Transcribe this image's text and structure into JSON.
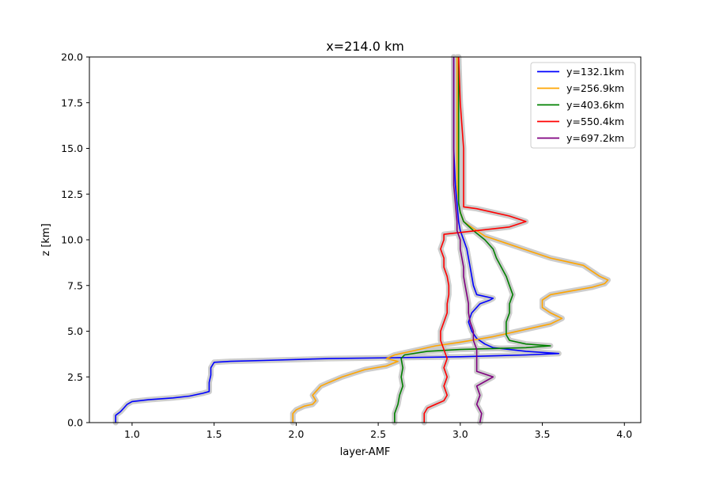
{
  "chart_data": {
    "type": "line",
    "title": "x=214.0 km",
    "xlabel": "layer-AMF",
    "ylabel": "z [km]",
    "xlim": [
      0.74,
      4.1
    ],
    "ylim": [
      0,
      20
    ],
    "xticks": [
      "1.0",
      "1.5",
      "2.0",
      "2.5",
      "3.0",
      "3.5",
      "4.0"
    ],
    "xtick_values": [
      1.0,
      1.5,
      2.0,
      2.5,
      3.0,
      3.5,
      4.0
    ],
    "yticks": [
      "0.0",
      "2.5",
      "5.0",
      "7.5",
      "10.0",
      "12.5",
      "15.0",
      "17.5",
      "20.0"
    ],
    "ytick_values": [
      0,
      2.5,
      5,
      7.5,
      10,
      12.5,
      15,
      17.5,
      20
    ],
    "grid": false,
    "legend_position": "top-right",
    "uncertainty_band_color": "#c8c8c8",
    "series": [
      {
        "name": "y=132.1km",
        "color": "#0000ff",
        "points": [
          [
            0.9,
            0.0
          ],
          [
            0.9,
            0.4
          ],
          [
            0.93,
            0.6
          ],
          [
            0.95,
            0.8
          ],
          [
            0.97,
            1.0
          ],
          [
            1.0,
            1.15
          ],
          [
            1.1,
            1.25
          ],
          [
            1.25,
            1.35
          ],
          [
            1.35,
            1.45
          ],
          [
            1.43,
            1.6
          ],
          [
            1.47,
            1.7
          ],
          [
            1.47,
            2.2
          ],
          [
            1.48,
            2.6
          ],
          [
            1.48,
            3.0
          ],
          [
            1.5,
            3.3
          ],
          [
            1.6,
            3.35
          ],
          [
            1.8,
            3.4
          ],
          [
            2.2,
            3.5
          ],
          [
            2.6,
            3.55
          ],
          [
            3.0,
            3.6
          ],
          [
            3.4,
            3.7
          ],
          [
            3.6,
            3.78
          ],
          [
            3.4,
            3.9
          ],
          [
            3.2,
            4.1
          ],
          [
            3.15,
            4.3
          ],
          [
            3.1,
            4.6
          ],
          [
            3.07,
            5.0
          ],
          [
            3.05,
            5.5
          ],
          [
            3.07,
            6.0
          ],
          [
            3.12,
            6.5
          ],
          [
            3.18,
            6.7
          ],
          [
            3.2,
            6.8
          ],
          [
            3.1,
            7.0
          ],
          [
            3.08,
            7.5
          ],
          [
            3.06,
            8.5
          ],
          [
            3.05,
            9.0
          ],
          [
            3.04,
            9.5
          ],
          [
            3.02,
            10.0
          ],
          [
            3.0,
            10.5
          ],
          [
            2.99,
            11.0
          ],
          [
            2.98,
            12.0
          ],
          [
            2.97,
            13.0
          ],
          [
            2.96,
            15.0
          ],
          [
            2.96,
            17.5
          ],
          [
            2.96,
            20.0
          ]
        ]
      },
      {
        "name": "y=256.9km",
        "color": "#ffa500",
        "points": [
          [
            1.98,
            0.0
          ],
          [
            1.98,
            0.5
          ],
          [
            2.0,
            0.7
          ],
          [
            2.05,
            0.9
          ],
          [
            2.1,
            1.0
          ],
          [
            2.12,
            1.2
          ],
          [
            2.1,
            1.5
          ],
          [
            2.12,
            1.7
          ],
          [
            2.15,
            2.0
          ],
          [
            2.2,
            2.2
          ],
          [
            2.28,
            2.5
          ],
          [
            2.35,
            2.7
          ],
          [
            2.42,
            2.9
          ],
          [
            2.55,
            3.1
          ],
          [
            2.62,
            3.35
          ],
          [
            2.55,
            3.5
          ],
          [
            2.6,
            3.7
          ],
          [
            2.7,
            3.9
          ],
          [
            2.85,
            4.2
          ],
          [
            3.0,
            4.4
          ],
          [
            3.2,
            4.7
          ],
          [
            3.4,
            5.1
          ],
          [
            3.55,
            5.4
          ],
          [
            3.62,
            5.7
          ],
          [
            3.55,
            6.0
          ],
          [
            3.5,
            6.3
          ],
          [
            3.5,
            6.7
          ],
          [
            3.55,
            7.0
          ],
          [
            3.8,
            7.4
          ],
          [
            3.88,
            7.6
          ],
          [
            3.9,
            7.8
          ],
          [
            3.85,
            8.0
          ],
          [
            3.8,
            8.3
          ],
          [
            3.75,
            8.6
          ],
          [
            3.65,
            8.8
          ],
          [
            3.55,
            9.0
          ],
          [
            3.45,
            9.3
          ],
          [
            3.35,
            9.6
          ],
          [
            3.25,
            9.9
          ],
          [
            3.15,
            10.2
          ],
          [
            3.1,
            10.5
          ],
          [
            3.05,
            10.8
          ],
          [
            3.02,
            11.0
          ],
          [
            3.0,
            11.5
          ],
          [
            2.99,
            12.0
          ],
          [
            2.98,
            13.0
          ],
          [
            2.98,
            15.0
          ],
          [
            2.98,
            17.5
          ],
          [
            2.98,
            20.0
          ]
        ]
      },
      {
        "name": "y=403.6km",
        "color": "#008000",
        "points": [
          [
            2.6,
            0.0
          ],
          [
            2.6,
            0.5
          ],
          [
            2.62,
            1.0
          ],
          [
            2.63,
            1.5
          ],
          [
            2.65,
            2.0
          ],
          [
            2.64,
            2.5
          ],
          [
            2.65,
            3.0
          ],
          [
            2.64,
            3.5
          ],
          [
            2.66,
            3.7
          ],
          [
            2.8,
            3.9
          ],
          [
            3.0,
            4.0
          ],
          [
            3.4,
            4.1
          ],
          [
            3.55,
            4.2
          ],
          [
            3.4,
            4.3
          ],
          [
            3.3,
            4.5
          ],
          [
            3.28,
            4.8
          ],
          [
            3.28,
            5.5
          ],
          [
            3.3,
            6.0
          ],
          [
            3.3,
            6.5
          ],
          [
            3.32,
            7.0
          ],
          [
            3.3,
            7.5
          ],
          [
            3.28,
            8.0
          ],
          [
            3.25,
            8.5
          ],
          [
            3.22,
            9.0
          ],
          [
            3.2,
            9.5
          ],
          [
            3.15,
            10.0
          ],
          [
            3.08,
            10.5
          ],
          [
            3.02,
            11.0
          ],
          [
            3.0,
            11.5
          ],
          [
            2.99,
            12.0
          ],
          [
            2.99,
            13.0
          ],
          [
            2.99,
            15.0
          ],
          [
            2.99,
            17.5
          ],
          [
            2.99,
            20.0
          ]
        ]
      },
      {
        "name": "y=550.4km",
        "color": "#ff0000",
        "points": [
          [
            2.78,
            0.0
          ],
          [
            2.78,
            0.5
          ],
          [
            2.8,
            0.8
          ],
          [
            2.85,
            1.0
          ],
          [
            2.9,
            1.2
          ],
          [
            2.92,
            1.5
          ],
          [
            2.9,
            2.0
          ],
          [
            2.92,
            2.5
          ],
          [
            2.9,
            3.0
          ],
          [
            2.92,
            3.5
          ],
          [
            2.9,
            4.0
          ],
          [
            2.88,
            4.5
          ],
          [
            2.88,
            5.0
          ],
          [
            2.9,
            5.5
          ],
          [
            2.92,
            6.0
          ],
          [
            2.92,
            6.5
          ],
          [
            2.93,
            7.0
          ],
          [
            2.93,
            7.5
          ],
          [
            2.92,
            8.0
          ],
          [
            2.9,
            8.5
          ],
          [
            2.9,
            9.0
          ],
          [
            2.88,
            9.5
          ],
          [
            2.9,
            10.0
          ],
          [
            2.9,
            10.3
          ],
          [
            3.1,
            10.5
          ],
          [
            3.3,
            10.7
          ],
          [
            3.4,
            11.0
          ],
          [
            3.3,
            11.3
          ],
          [
            3.1,
            11.7
          ],
          [
            3.02,
            11.8
          ],
          [
            3.02,
            12.5
          ],
          [
            3.02,
            15.0
          ],
          [
            3.0,
            17.5
          ],
          [
            2.99,
            20.0
          ]
        ]
      },
      {
        "name": "y=697.2km",
        "color": "#800080",
        "points": [
          [
            3.12,
            0.0
          ],
          [
            3.13,
            0.5
          ],
          [
            3.1,
            1.0
          ],
          [
            3.12,
            1.5
          ],
          [
            3.1,
            2.0
          ],
          [
            3.2,
            2.5
          ],
          [
            3.1,
            2.8
          ],
          [
            3.1,
            3.5
          ],
          [
            3.1,
            4.0
          ],
          [
            3.08,
            4.5
          ],
          [
            3.08,
            5.0
          ],
          [
            3.06,
            5.5
          ],
          [
            3.05,
            6.0
          ],
          [
            3.05,
            6.5
          ],
          [
            3.04,
            7.0
          ],
          [
            3.03,
            7.5
          ],
          [
            3.02,
            8.0
          ],
          [
            3.02,
            8.5
          ],
          [
            3.01,
            9.0
          ],
          [
            3.0,
            9.5
          ],
          [
            3.0,
            10.0
          ],
          [
            2.98,
            10.5
          ],
          [
            2.98,
            11.0
          ],
          [
            2.97,
            12.0
          ],
          [
            2.96,
            13.0
          ],
          [
            2.96,
            15.0
          ],
          [
            2.96,
            17.5
          ],
          [
            2.96,
            20.0
          ]
        ]
      }
    ]
  }
}
